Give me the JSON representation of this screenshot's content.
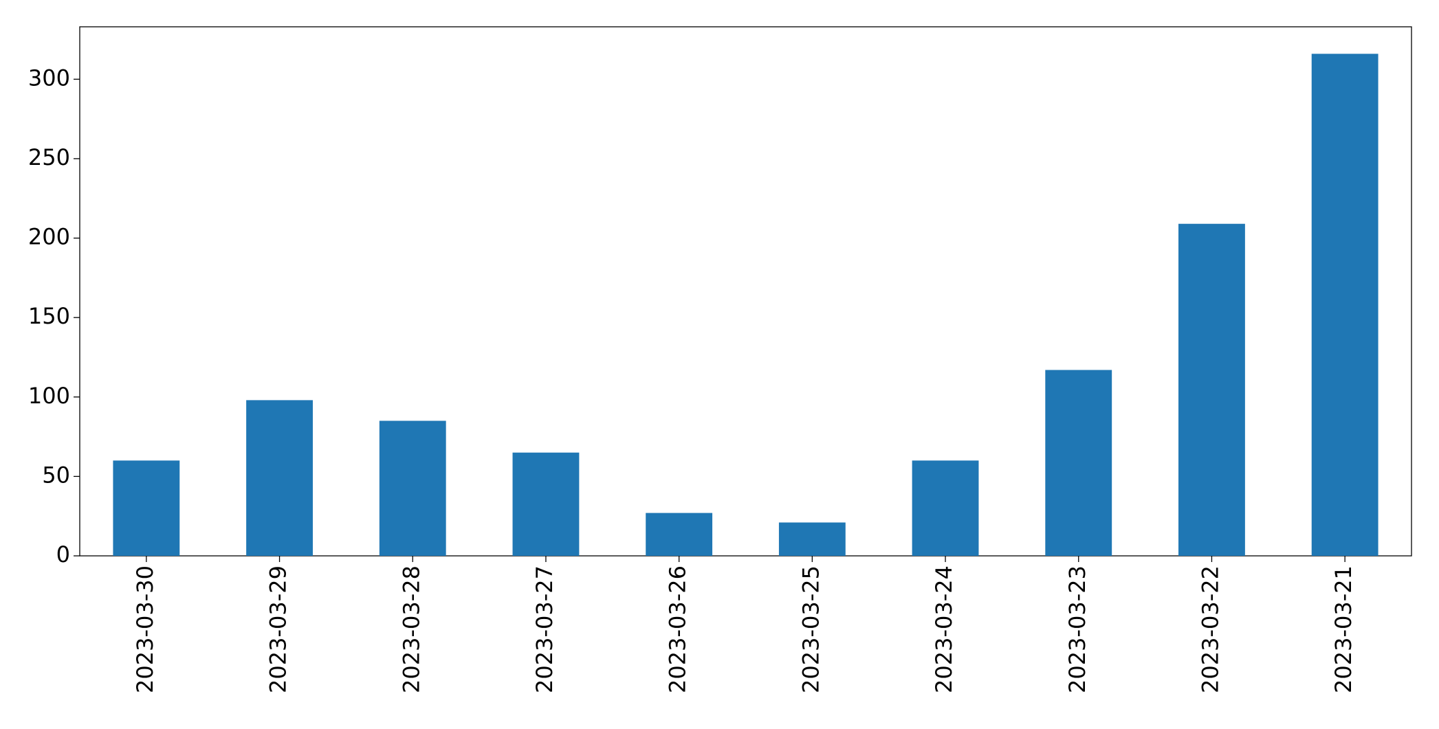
{
  "chart_data": {
    "type": "bar",
    "categories": [
      "2023-03-30",
      "2023-03-29",
      "2023-03-28",
      "2023-03-27",
      "2023-03-26",
      "2023-03-25",
      "2023-03-24",
      "2023-03-23",
      "2023-03-22",
      "2023-03-21"
    ],
    "values": [
      60,
      98,
      85,
      65,
      27,
      21,
      60,
      117,
      209,
      316
    ],
    "color": "#1f77b4",
    "ylim": [
      0,
      333
    ],
    "yticks": [
      0,
      50,
      100,
      150,
      200,
      250,
      300
    ],
    "grid": false
  }
}
